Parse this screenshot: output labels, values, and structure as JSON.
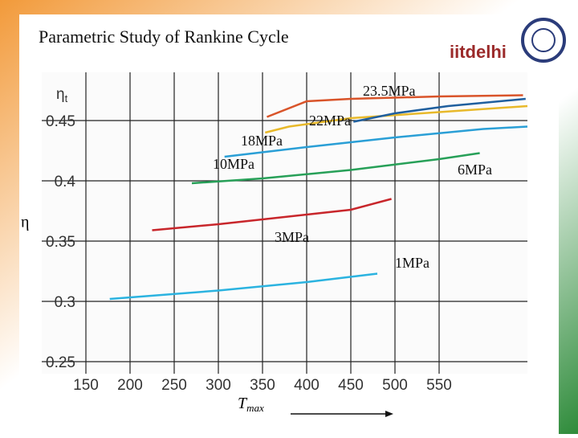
{
  "header": {
    "title": "Parametric Study of Rankine Cycle",
    "logo": "iitdelhi"
  },
  "chart_data": {
    "type": "line",
    "ylabel": "η",
    "axis_label": {
      "base": "η",
      "sub": "t"
    },
    "xlabel": {
      "base": "T",
      "sub": "max"
    },
    "xlim": [
      100,
      650
    ],
    "xticks": [
      150,
      200,
      250,
      300,
      350,
      400,
      450,
      500,
      550
    ],
    "ylim": [
      0.24,
      0.49
    ],
    "yticks": [
      0.25,
      0.3,
      0.35,
      0.4,
      0.45
    ],
    "grid": true,
    "series": [
      {
        "name": "1MPa",
        "color": "#2bb3e0",
        "x": [
          177,
          300,
          400,
          480
        ],
        "values": [
          0.302,
          0.309,
          0.316,
          0.323
        ]
      },
      {
        "name": "3MPa",
        "color": "#c8262b",
        "x": [
          225,
          300,
          400,
          450,
          496
        ],
        "values": [
          0.359,
          0.364,
          0.372,
          0.376,
          0.385
        ]
      },
      {
        "name": "6MPa",
        "color": "#27a058",
        "x": [
          270,
          350,
          450,
          550,
          596
        ],
        "values": [
          0.398,
          0.402,
          0.409,
          0.418,
          0.423
        ]
      },
      {
        "name": "10MPa",
        "color": "#2a9fd6",
        "x": [
          307,
          400,
          500,
          600,
          650
        ],
        "values": [
          0.42,
          0.428,
          0.436,
          0.443,
          0.445
        ]
      },
      {
        "name": "18MPa",
        "color": "#e8b92a",
        "x": [
          353,
          380,
          450,
          550,
          650
        ],
        "values": [
          0.44,
          0.445,
          0.452,
          0.457,
          0.462
        ]
      },
      {
        "name": "22MPa",
        "color": "#1f5f9e",
        "x": [
          453,
          500,
          560,
          648
        ],
        "values": [
          0.449,
          0.456,
          0.462,
          0.468
        ]
      },
      {
        "name": "23.5MPa",
        "color": "#d9542a",
        "x": [
          355,
          400,
          450,
          550,
          645
        ],
        "values": [
          0.453,
          0.466,
          0.468,
          0.47,
          0.471
        ]
      }
    ]
  }
}
